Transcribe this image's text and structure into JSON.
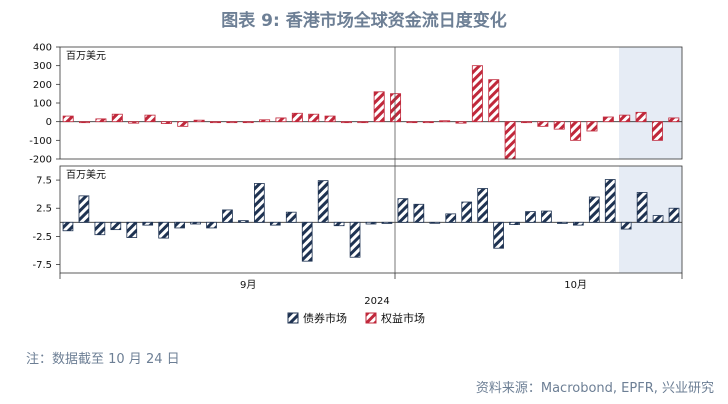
{
  "title": "图表 9:  香港市场全球资金流日度变化",
  "note": "注：数据截至 10 月 24 日",
  "source": "资料来源：Macrobond, EPFR, 兴业研究",
  "colors": {
    "bond": "#1f3352",
    "equity": "#c0283b",
    "highlight": "#e6ecf5",
    "divider": "#555555"
  },
  "chart_data": [
    {
      "type": "bar",
      "series": [
        {
          "name": "权益市场",
          "values": [
            30,
            -5,
            15,
            40,
            -8,
            35,
            -10,
            -25,
            8,
            -5,
            -3,
            -2,
            10,
            20,
            45,
            40,
            30,
            -3,
            -5,
            160,
            150,
            -3,
            -5,
            5,
            -8,
            300,
            225,
            -200,
            -5,
            -25,
            -40,
            -100,
            -50,
            25,
            35,
            50,
            -100,
            20
          ]
        }
      ],
      "unit_label": "百万美元",
      "ylim": [
        -200,
        400
      ],
      "yticks": [
        400,
        300,
        200,
        100,
        0,
        -100,
        -200
      ]
    },
    {
      "type": "bar",
      "series": [
        {
          "name": "债券市场",
          "values": [
            -1.5,
            4.7,
            -2.2,
            -1.3,
            -2.7,
            -0.5,
            -2.8,
            -1.0,
            -0.3,
            -1.0,
            2.2,
            0.3,
            6.9,
            -0.5,
            1.8,
            -6.9,
            7.4,
            -0.6,
            -6.2,
            -0.3,
            -0.2,
            4.2,
            3.2,
            -0.1,
            1.5,
            3.6,
            6.0,
            -4.6,
            -0.4,
            1.9,
            2.0,
            -0.2,
            -0.5,
            4.5,
            7.6,
            -1.2,
            5.3,
            1.2,
            2.5
          ]
        }
      ],
      "unit_label": "百万美元",
      "ylim": [
        -9,
        10
      ],
      "yticks": [
        7.5,
        2.5,
        -2.5,
        -7.5
      ]
    }
  ],
  "xaxis": {
    "labels": [
      {
        "text": "9月",
        "at": 11
      },
      {
        "text": "10月",
        "at": 31
      }
    ],
    "year": "2024"
  },
  "legend": [
    "债券市场",
    "权益市场"
  ]
}
